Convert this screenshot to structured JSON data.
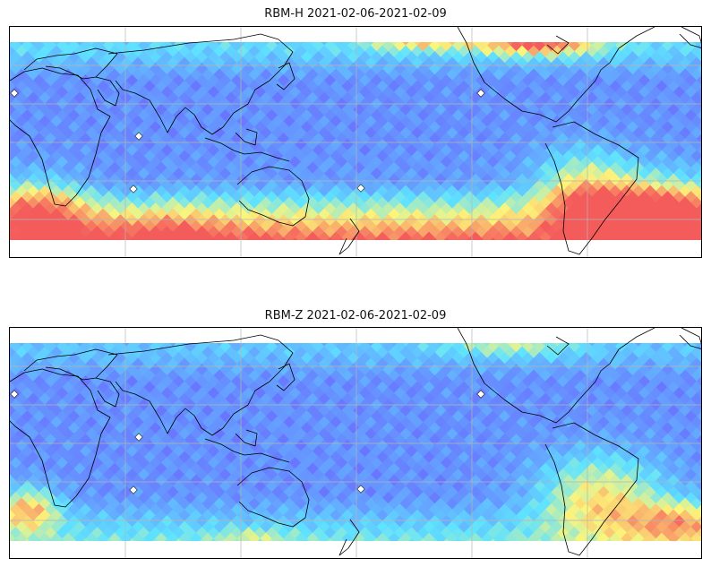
{
  "panels": [
    {
      "title": "RBM-H 2021-02-06-2021-02-09",
      "variant": "H"
    },
    {
      "title": "RBM-Z 2021-02-06-2021-02-09",
      "variant": "Z"
    }
  ],
  "colormap": {
    "low": "#6a6cff",
    "mid_low": "#5fe3ff",
    "mid": "#fdf57a",
    "high": "#f45c5c"
  },
  "map": {
    "projection": "plate-carree",
    "gridlines": true,
    "coastlines": true
  }
}
